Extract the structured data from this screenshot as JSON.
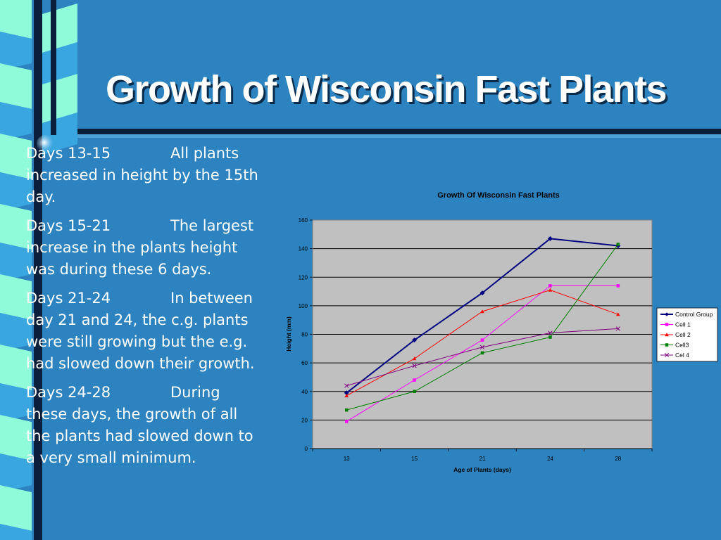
{
  "slide": {
    "title": "Growth of Wisconsin Fast Plants",
    "notes": [
      {
        "days": "Days 13-15",
        "text": "All plants increased in height by the 15th day."
      },
      {
        "days": "Days 15-21",
        "text": "The largest increase in the plants height was during these 6 days."
      },
      {
        "days": "Days 21-24",
        "text": "In between day 21 and 24, the c.g. plants were still growing but the e.g. had slowed down their growth."
      },
      {
        "days": "Days 24-28",
        "text": "During these days, the growth of all the plants had slowed down to a very small minimum."
      }
    ]
  },
  "colors": {
    "background": "#2c83bf",
    "plot_area": "#c0c0c0",
    "control_group": "#000080",
    "cell_1": "#ff00ff",
    "cell_2": "#ff0000",
    "cell_3": "#008000",
    "cel_4": "#800080"
  },
  "chart_data": {
    "type": "line",
    "title": "Growth Of Wisconsin Fast Plants",
    "xlabel": "Age of Plants (days)",
    "ylabel": "Height (mm)",
    "categories": [
      "13",
      "15",
      "21",
      "24",
      "28"
    ],
    "ylim": [
      0,
      160
    ],
    "yticks": [
      "0",
      "20",
      "40",
      "60",
      "80",
      "100",
      "120",
      "140",
      "160"
    ],
    "grid": true,
    "legend": "right",
    "series": [
      {
        "name": "Control Group",
        "values": [
          39,
          76,
          109,
          147,
          142
        ],
        "marker": "diamond",
        "color": "#000080"
      },
      {
        "name": "Cell 1",
        "values": [
          19,
          48,
          76,
          114,
          114
        ],
        "marker": "square",
        "color": "#ff00ff"
      },
      {
        "name": "Cell 2",
        "values": [
          37,
          63,
          96,
          111,
          94
        ],
        "marker": "triangle",
        "color": "#ff0000"
      },
      {
        "name": "Cell3",
        "values": [
          27,
          40,
          67,
          78,
          143
        ],
        "marker": "square",
        "color": "#008000"
      },
      {
        "name": "Cel 4",
        "values": [
          44,
          58,
          71,
          81,
          84
        ],
        "marker": "x",
        "color": "#800080"
      }
    ]
  }
}
